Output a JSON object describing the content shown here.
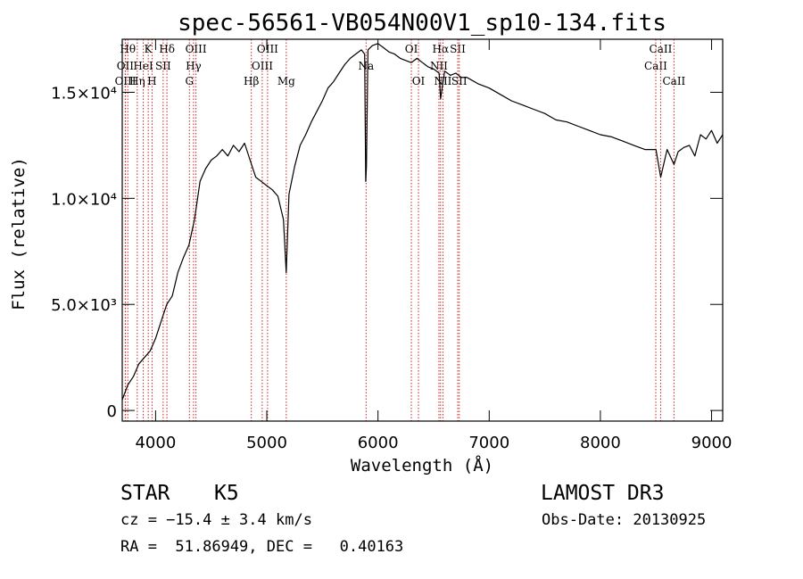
{
  "chart_data": {
    "type": "line",
    "title": "spec-56561-VB054N00V1_sp10-134.fits",
    "xlabel": "Wavelength (Å)",
    "ylabel": "Flux (relative)",
    "xlim": [
      3700,
      9100
    ],
    "ylim": [
      -500,
      17500
    ],
    "xticks": [
      {
        "value": 4000,
        "label": "4000"
      },
      {
        "value": 5000,
        "label": "5000"
      },
      {
        "value": 6000,
        "label": "6000"
      },
      {
        "value": 7000,
        "label": "7000"
      },
      {
        "value": 8000,
        "label": "8000"
      },
      {
        "value": 9000,
        "label": "9000"
      }
    ],
    "yticks": [
      {
        "value": 0,
        "label": "0"
      },
      {
        "value": 5000,
        "label": "5.0×10³"
      },
      {
        "value": 10000,
        "label": "1.0×10⁴"
      },
      {
        "value": 15000,
        "label": "1.5×10⁴"
      }
    ],
    "series": [
      {
        "name": "flux",
        "x": [
          3700,
          3750,
          3800,
          3850,
          3900,
          3950,
          4000,
          4050,
          4100,
          4150,
          4200,
          4250,
          4300,
          4350,
          4400,
          4450,
          4500,
          4550,
          4600,
          4650,
          4700,
          4750,
          4800,
          4850,
          4900,
          4950,
          5000,
          5050,
          5100,
          5150,
          5175,
          5200,
          5250,
          5300,
          5350,
          5400,
          5450,
          5500,
          5550,
          5600,
          5650,
          5700,
          5750,
          5800,
          5850,
          5880,
          5890,
          5896,
          5910,
          5950,
          6000,
          6050,
          6100,
          6150,
          6200,
          6250,
          6300,
          6350,
          6400,
          6450,
          6500,
          6550,
          6563,
          6600,
          6650,
          6700,
          6750,
          6800,
          6900,
          7000,
          7100,
          7200,
          7300,
          7400,
          7500,
          7600,
          7700,
          7800,
          7900,
          8000,
          8100,
          8200,
          8300,
          8400,
          8500,
          8542,
          8600,
          8662,
          8700,
          8750,
          8800,
          8850,
          8900,
          8950,
          9000,
          9050,
          9100
        ],
        "values": [
          500,
          1200,
          1600,
          2200,
          2500,
          2800,
          3400,
          4200,
          5000,
          5400,
          6500,
          7200,
          7800,
          9000,
          10800,
          11400,
          11800,
          12000,
          12300,
          12000,
          12500,
          12200,
          12600,
          11800,
          11000,
          10800,
          10600,
          10400,
          10100,
          9000,
          6500,
          10200,
          11500,
          12500,
          13000,
          13600,
          14100,
          14600,
          15200,
          15500,
          15900,
          16300,
          16600,
          16800,
          17000,
          16800,
          10800,
          11500,
          17000,
          17200,
          17300,
          17100,
          16900,
          16800,
          16600,
          16500,
          16400,
          16600,
          16400,
          16200,
          16100,
          15900,
          14700,
          16000,
          15800,
          15900,
          15700,
          15700,
          15400,
          15200,
          14900,
          14600,
          14400,
          14200,
          14000,
          13700,
          13600,
          13400,
          13200,
          13000,
          12900,
          12700,
          12500,
          12300,
          12300,
          11000,
          12300,
          11600,
          12200,
          12400,
          12500,
          12000,
          13000,
          12800,
          13200,
          12600,
          13000
        ]
      }
    ],
    "lines": [
      {
        "wl": 3750,
        "label": "Hθ",
        "row": 0
      },
      {
        "wl": 3727,
        "label": "OII",
        "row": 1
      },
      {
        "wl": 3729,
        "label": "OIII",
        "row": 2
      },
      {
        "wl": 3835,
        "label": "Hη",
        "row": 2
      },
      {
        "wl": 3889,
        "label": "HeI",
        "row": 1
      },
      {
        "wl": 3934,
        "label": "K",
        "row": 0
      },
      {
        "wl": 3968,
        "label": "H",
        "row": 2
      },
      {
        "wl": 4068,
        "label": "SII",
        "row": 1
      },
      {
        "wl": 4102,
        "label": "Hδ",
        "row": 0
      },
      {
        "wl": 4304,
        "label": "G",
        "row": 2
      },
      {
        "wl": 4341,
        "label": "Hγ",
        "row": 1
      },
      {
        "wl": 4363,
        "label": "OIII",
        "row": 0
      },
      {
        "wl": 4861,
        "label": "Hβ",
        "row": 2
      },
      {
        "wl": 4959,
        "label": "OIII",
        "row": 1
      },
      {
        "wl": 5007,
        "label": "OIII",
        "row": 0
      },
      {
        "wl": 5175,
        "label": "Mg",
        "row": 2
      },
      {
        "wl": 5893,
        "label": "Na",
        "row": 1
      },
      {
        "wl": 6300,
        "label": "OI",
        "row": 0
      },
      {
        "wl": 6364,
        "label": "OI",
        "row": 2
      },
      {
        "wl": 6548,
        "label": "NII",
        "row": 1
      },
      {
        "wl": 6563,
        "label": "Hα",
        "row": 0
      },
      {
        "wl": 6584,
        "label": "NII",
        "row": 2
      },
      {
        "wl": 6717,
        "label": "SII",
        "row": 0
      },
      {
        "wl": 6731,
        "label": "SII",
        "row": 2
      },
      {
        "wl": 8498,
        "label": "CaII",
        "row": 1
      },
      {
        "wl": 8542,
        "label": "CaII",
        "row": 0
      },
      {
        "wl": 8662,
        "label": "CaII",
        "row": 2
      }
    ]
  },
  "info": {
    "class": "STAR",
    "subclass": "K5",
    "survey": "LAMOST DR3",
    "redshift": "cz = −15.4 ± 3.4 km/s",
    "obsdate": "Obs-Date: 20130925",
    "coords": "RA =  51.86949, DEC =   0.40163"
  }
}
